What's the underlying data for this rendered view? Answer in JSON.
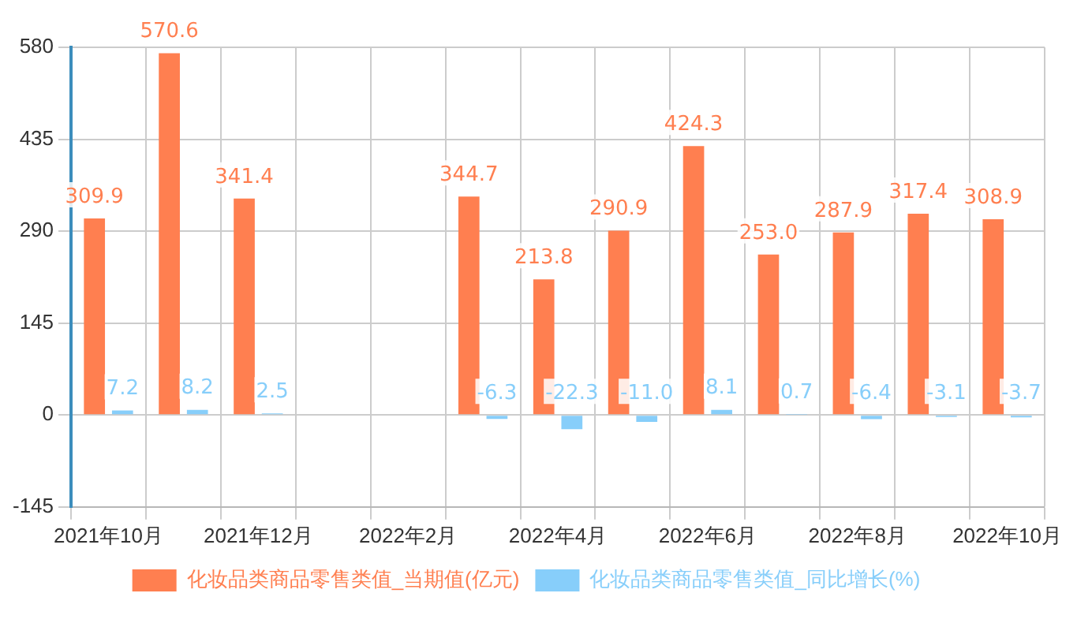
{
  "chart_data": {
    "type": "bar",
    "categories": [
      "2021年10月",
      null,
      "2021年12月",
      null,
      "2022年2月",
      null,
      "2022年4月",
      null,
      "2022年6月",
      null,
      "2022年8月",
      null,
      "2022年10月"
    ],
    "series": [
      {
        "name": "化妆品类商品零售类值_当期值(亿元)",
        "color": "#ff7f50",
        "values": [
          309.9,
          570.6,
          341.4,
          null,
          null,
          344.7,
          213.8,
          290.9,
          424.3,
          253.0,
          287.9,
          317.4,
          308.9
        ],
        "value_labels": [
          "309.9",
          "570.6",
          "341.4",
          null,
          null,
          "344.7",
          "213.8",
          "290.9",
          "424.3",
          "253.0",
          "287.9",
          "317.4",
          "308.9"
        ]
      },
      {
        "name": "化妆品类商品零售类值_同比增长(%)",
        "color": "#87cefa",
        "values": [
          7.2,
          8.2,
          2.5,
          null,
          null,
          -6.3,
          -22.3,
          -11.0,
          8.1,
          0.7,
          -6.4,
          -3.1,
          -3.7
        ],
        "value_labels": [
          "7.2",
          "8.2",
          "2.5",
          null,
          null,
          "-6.3",
          "-22.3",
          "-11.0",
          "8.1",
          "0.7",
          "-6.4",
          "-3.1",
          "-3.7"
        ]
      }
    ],
    "ylim": [
      -145,
      580
    ],
    "yticks": [
      -145,
      0,
      145,
      290,
      435,
      580
    ],
    "grid": true,
    "legend": "bottom"
  }
}
